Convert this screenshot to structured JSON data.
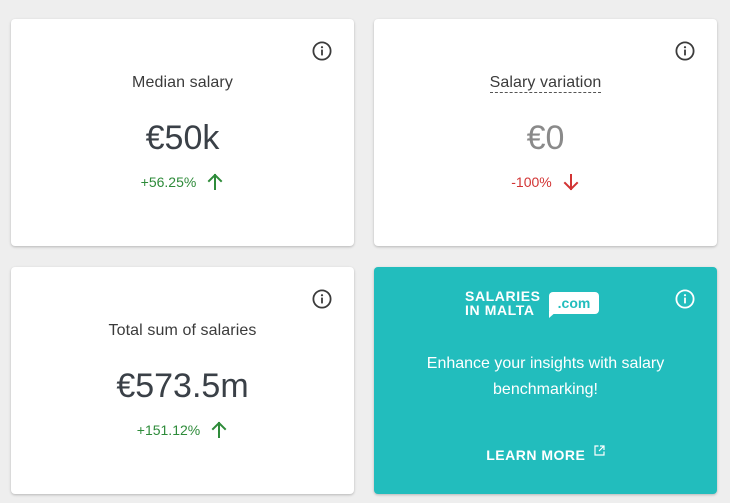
{
  "cards": {
    "median": {
      "title": "Median salary",
      "value": "€50k",
      "change": "+56.25%",
      "direction": "up"
    },
    "variation": {
      "title": "Salary variation",
      "value": "€0",
      "change": "-100%",
      "direction": "down"
    },
    "total": {
      "title": "Total sum of salaries",
      "value": "€573.5m",
      "change": "+151.12%",
      "direction": "up"
    }
  },
  "promo": {
    "logo_line_1": "SALARIES",
    "logo_line_2": "IN MALTA",
    "logo_badge": ".com",
    "text": "Enhance your insights with salary benchmarking!",
    "cta": "LEARN MORE"
  },
  "icons": {
    "info": "info-circle-icon",
    "up": "arrow-up-icon",
    "down": "arrow-down-icon",
    "external": "external-link-icon"
  },
  "colors": {
    "background": "#eeeeee",
    "card": "#ffffff",
    "promo": "#22bdbd",
    "positive": "#2e8b3a",
    "negative": "#d23434",
    "value_text": "#3a4047",
    "muted_value": "#8a8a8a"
  }
}
